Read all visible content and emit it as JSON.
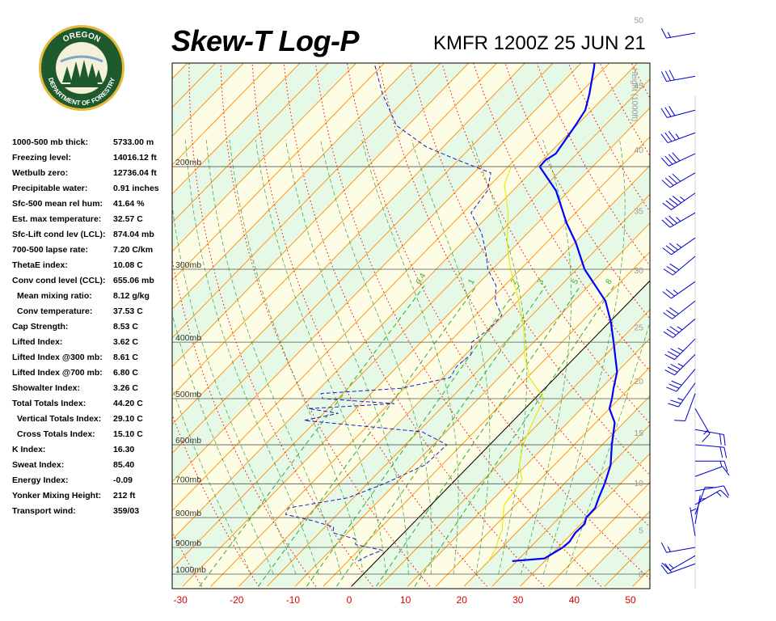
{
  "header": {
    "title": "Skew-T Log-P",
    "station": "KMFR 1200Z 25 JUN 21"
  },
  "logo": {
    "top_text": "OREGON",
    "bottom_text": "DEPARTMENT OF FORESTRY"
  },
  "stats": [
    {
      "label": "1000-500 mb thick:",
      "value": "5733.00 m",
      "indent": false
    },
    {
      "label": "Freezing level:",
      "value": "14016.12 ft",
      "indent": false
    },
    {
      "label": "Wetbulb zero:",
      "value": "12736.04 ft",
      "indent": false
    },
    {
      "label": "Precipitable water:",
      "value": "0.91 inches",
      "indent": false
    },
    {
      "label": "Sfc-500 mean rel hum:",
      "value": "41.64 %",
      "indent": false
    },
    {
      "label": "Est. max temperature:",
      "value": "32.57 C",
      "indent": false
    },
    {
      "label": "Sfc-Lift cond lev (LCL):",
      "value": "874.04 mb",
      "indent": false
    },
    {
      "label": "700-500 lapse rate:",
      "value": "7.20 C/km",
      "indent": false
    },
    {
      "label": "ThetaE index:",
      "value": "10.08 C",
      "indent": false
    },
    {
      "label": "Conv cond level (CCL):",
      "value": "655.06 mb",
      "indent": false
    },
    {
      "label": "Mean mixing ratio:",
      "value": "8.12 g/kg",
      "indent": true
    },
    {
      "label": "Conv temperature:",
      "value": "37.53 C",
      "indent": true
    },
    {
      "label": "Cap Strength:",
      "value": "8.53 C",
      "indent": false
    },
    {
      "label": "Lifted Index:",
      "value": "3.62 C",
      "indent": false
    },
    {
      "label": "Lifted Index @300 mb:",
      "value": "8.61 C",
      "indent": false
    },
    {
      "label": "Lifted Index @700 mb:",
      "value": "6.80 C",
      "indent": false
    },
    {
      "label": "Showalter Index:",
      "value": "3.26 C",
      "indent": false
    },
    {
      "label": "Total Totals Index:",
      "value": "44.20 C",
      "indent": false
    },
    {
      "label": "Vertical Totals Index:",
      "value": "29.10 C",
      "indent": true
    },
    {
      "label": "Cross Totals Index:",
      "value": "15.10 C",
      "indent": true
    },
    {
      "label": "K Index:",
      "value": "16.30",
      "indent": false
    },
    {
      "label": "Sweat Index:",
      "value": "85.40",
      "indent": false
    },
    {
      "label": "Energy Index:",
      "value": "-0.09",
      "indent": false
    },
    {
      "label": "Yonker Mixing Height:",
      "value": "212 ft",
      "indent": false
    },
    {
      "label": "Transport wind:",
      "value": "359/03",
      "indent": false
    }
  ],
  "colors": {
    "temperature": "#0000ff",
    "dewpoint": "#1a1acc",
    "parcel": "#e8e800",
    "isotherm": "#ff8c00",
    "dry_adiabat": "#ff0000",
    "moist_adiabat": "#228822",
    "mixing_ratio": "#33aa33",
    "isobar": "#555555",
    "band_a": "#fdfde5",
    "band_b": "#e6f9e6",
    "axis_label": "#dd0000",
    "height_label": "#999999"
  },
  "chart_data": {
    "type": "skew-t",
    "xlabel": "",
    "ylabel": "",
    "temp_range": [
      -30,
      53
    ],
    "pressure_range": [
      100,
      1050
    ],
    "x_ticks": [
      -30,
      -20,
      -10,
      0,
      10,
      20,
      30,
      40,
      50
    ],
    "pressure_levels": [
      {
        "p": 200,
        "label": "200mb"
      },
      {
        "p": 300,
        "label": "300mb"
      },
      {
        "p": 400,
        "label": "400mb"
      },
      {
        "p": 500,
        "label": "500mb"
      },
      {
        "p": 600,
        "label": "600mb"
      },
      {
        "p": 700,
        "label": "700mb"
      },
      {
        "p": 800,
        "label": "800mb"
      },
      {
        "p": 900,
        "label": "900mb"
      },
      {
        "p": 1000,
        "label": "1000mb"
      }
    ],
    "height_axis": {
      "title": "Height (1000ft)",
      "labels": [
        {
          "p": 1000,
          "label": "0"
        },
        {
          "p": 840,
          "label": "5"
        },
        {
          "p": 697,
          "label": "10"
        },
        {
          "p": 572,
          "label": "15"
        },
        {
          "p": 466,
          "label": "20"
        },
        {
          "p": 377,
          "label": "25"
        },
        {
          "p": 301,
          "label": "30"
        },
        {
          "p": 238,
          "label": "35"
        },
        {
          "p": 187,
          "label": "40"
        },
        {
          "p": 145,
          "label": "45"
        },
        {
          "p": 112,
          "label": "50"
        }
      ]
    },
    "mixing_ratio_labels": [
      "0.4",
      "1",
      "2",
      "3",
      "5",
      "8"
    ],
    "mixing_ratio_values": [
      0.4,
      1,
      2,
      3,
      5,
      8
    ],
    "series": [
      {
        "name": "",
        "kind": "temperature",
        "points": [
          [
            950,
            24.2
          ],
          [
            940,
            29.5
          ],
          [
            900,
            30.8
          ],
          [
            880,
            31.0
          ],
          [
            850,
            30.5
          ],
          [
            820,
            30.6
          ],
          [
            800,
            29.8
          ],
          [
            770,
            29.7
          ],
          [
            740,
            28.6
          ],
          [
            700,
            27.2
          ],
          [
            650,
            25.0
          ],
          [
            600,
            21.7
          ],
          [
            550,
            18.4
          ],
          [
            520,
            15.0
          ],
          [
            500,
            13.7
          ],
          [
            480,
            12.2
          ],
          [
            450,
            10.0
          ],
          [
            400,
            4.2
          ],
          [
            370,
            0.3
          ],
          [
            340,
            -4.4
          ],
          [
            300,
            -13.6
          ],
          [
            270,
            -19.8
          ],
          [
            250,
            -24.8
          ],
          [
            220,
            -32.3
          ],
          [
            200,
            -39.4
          ],
          [
            195,
            -39.5
          ],
          [
            190,
            -38.8
          ],
          [
            170,
            -40.2
          ],
          [
            160,
            -41.1
          ],
          [
            150,
            -43.2
          ],
          [
            135,
            -47.0
          ],
          [
            115,
            -53.4
          ],
          [
            105,
            -55.6
          ]
        ]
      },
      {
        "name": "",
        "kind": "dewpoint",
        "points": [
          [
            950,
            -3.2
          ],
          [
            930,
            -2.4
          ],
          [
            910,
            -0.8
          ],
          [
            890,
            -6.5
          ],
          [
            870,
            -7.6
          ],
          [
            850,
            -12.5
          ],
          [
            830,
            -13.5
          ],
          [
            810,
            -18.3
          ],
          [
            790,
            -24.2
          ],
          [
            770,
            -24.8
          ],
          [
            740,
            -16.0
          ],
          [
            700,
            -12.0
          ],
          [
            650,
            -8.0
          ],
          [
            600,
            -7.6
          ],
          [
            570,
            -14.3
          ],
          [
            545,
            -37.2
          ],
          [
            530,
            -32.4
          ],
          [
            520,
            -38.5
          ],
          [
            510,
            -24.1
          ],
          [
            500,
            -37.7
          ],
          [
            490,
            -38.9
          ],
          [
            480,
            -25.5
          ],
          [
            460,
            -18.7
          ],
          [
            440,
            -19.5
          ],
          [
            420,
            -19.0
          ],
          [
            400,
            -21.0
          ],
          [
            380,
            -20.2
          ],
          [
            360,
            -20.3
          ],
          [
            340,
            -24.0
          ],
          [
            320,
            -26.5
          ],
          [
            300,
            -30.8
          ],
          [
            280,
            -34.2
          ],
          [
            260,
            -38.2
          ],
          [
            240,
            -43.6
          ],
          [
            220,
            -44.5
          ],
          [
            205,
            -47.0
          ],
          [
            195,
            -55.0
          ],
          [
            185,
            -63.0
          ],
          [
            170,
            -72.0
          ],
          [
            150,
            -80.0
          ],
          [
            130,
            -88.0
          ],
          [
            115,
            -96.0
          ]
        ]
      },
      {
        "name": "",
        "kind": "parcel",
        "points": [
          [
            950,
            20.0
          ],
          [
            900,
            19.0
          ],
          [
            874,
            18.0
          ],
          [
            840,
            17.0
          ],
          [
            800,
            15.0
          ],
          [
            760,
            13.0
          ],
          [
            720,
            12.4
          ],
          [
            690,
            11.9
          ],
          [
            650,
            8.8
          ],
          [
            600,
            5.9
          ],
          [
            560,
            4.2
          ],
          [
            520,
            2.5
          ],
          [
            500,
            1.6
          ],
          [
            460,
            -4.6
          ],
          [
            420,
            -9.5
          ],
          [
            380,
            -14.0
          ],
          [
            340,
            -19.8
          ],
          [
            300,
            -26.8
          ],
          [
            270,
            -32.0
          ],
          [
            240,
            -37.0
          ],
          [
            215,
            -42.5
          ],
          [
            200,
            -44.5
          ]
        ]
      }
    ],
    "wind_barbs": [
      {
        "p": 960,
        "dir": 250,
        "kt": 20
      },
      {
        "p": 930,
        "dir": 240,
        "kt": 15
      },
      {
        "p": 900,
        "dir": 260,
        "kt": 15
      },
      {
        "p": 860,
        "dir": 350,
        "kt": 5
      },
      {
        "p": 820,
        "dir": 10,
        "kt": 5
      },
      {
        "p": 790,
        "dir": 20,
        "kt": 10
      },
      {
        "p": 760,
        "dir": 60,
        "kt": 15
      },
      {
        "p": 720,
        "dir": 80,
        "kt": 10
      },
      {
        "p": 680,
        "dir": 70,
        "kt": 10
      },
      {
        "p": 640,
        "dir": 90,
        "kt": 15
      },
      {
        "p": 600,
        "dir": 95,
        "kt": 20
      },
      {
        "p": 565,
        "dir": 100,
        "kt": 20
      },
      {
        "p": 520,
        "dir": 150,
        "kt": 15
      },
      {
        "p": 490,
        "dir": 200,
        "kt": 10
      },
      {
        "p": 470,
        "dir": 215,
        "kt": 25
      },
      {
        "p": 445,
        "dir": 220,
        "kt": 30
      },
      {
        "p": 420,
        "dir": 225,
        "kt": 35
      },
      {
        "p": 395,
        "dir": 225,
        "kt": 35
      },
      {
        "p": 365,
        "dir": 230,
        "kt": 35
      },
      {
        "p": 340,
        "dir": 232,
        "kt": 30
      },
      {
        "p": 315,
        "dir": 235,
        "kt": 25
      },
      {
        "p": 285,
        "dir": 230,
        "kt": 30
      },
      {
        "p": 265,
        "dir": 235,
        "kt": 35
      },
      {
        "p": 240,
        "dir": 240,
        "kt": 35
      },
      {
        "p": 222,
        "dir": 235,
        "kt": 45
      },
      {
        "p": 205,
        "dir": 240,
        "kt": 40
      },
      {
        "p": 190,
        "dir": 245,
        "kt": 40
      },
      {
        "p": 175,
        "dir": 250,
        "kt": 35
      },
      {
        "p": 160,
        "dir": 255,
        "kt": 30
      },
      {
        "p": 140,
        "dir": 260,
        "kt": 30
      },
      {
        "p": 118,
        "dir": 260,
        "kt": 15
      }
    ]
  }
}
